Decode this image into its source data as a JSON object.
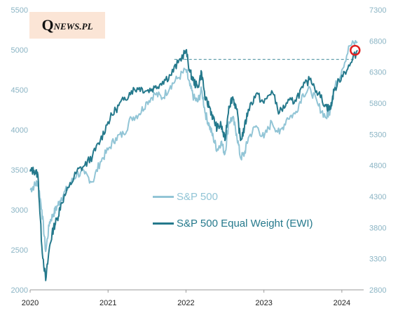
{
  "logo": {
    "initial": "Q",
    "rest": "NEWS.PL"
  },
  "chart_data": {
    "type": "line",
    "x_ticks": [
      "2020",
      "2021",
      "2022",
      "2023",
      "2024"
    ],
    "y_left": {
      "ticks": [
        "2000",
        "2500",
        "3000",
        "3500",
        "4000",
        "4500",
        "5000",
        "5500"
      ],
      "range": [
        2000,
        5500
      ]
    },
    "y_right": {
      "ticks": [
        "2800",
        "3300",
        "3800",
        "4300",
        "4800",
        "5300",
        "5800",
        "6300",
        "6800",
        "7300"
      ],
      "range": [
        2800,
        7300
      ]
    },
    "colors": {
      "sp500": "#92c5d6",
      "ewi": "#25798c",
      "highlight": "#e02020",
      "axis_text": "#8ab4c4"
    },
    "series": [
      {
        "name": "S&P 500",
        "axis": "left",
        "color": "#92c5d6",
        "x": [
          2020.0,
          2020.05,
          2020.1,
          2020.15,
          2020.2,
          2020.25,
          2020.3,
          2020.35,
          2020.4,
          2020.5,
          2020.6,
          2020.7,
          2020.8,
          2020.9,
          2021.0,
          2021.1,
          2021.2,
          2021.3,
          2021.4,
          2021.5,
          2021.6,
          2021.7,
          2021.8,
          2021.9,
          2022.0,
          2022.05,
          2022.1,
          2022.15,
          2022.2,
          2022.25,
          2022.3,
          2022.35,
          2022.4,
          2022.45,
          2022.5,
          2022.55,
          2022.6,
          2022.65,
          2022.7,
          2022.75,
          2022.8,
          2022.9,
          2023.0,
          2023.1,
          2023.2,
          2023.3,
          2023.4,
          2023.5,
          2023.6,
          2023.7,
          2023.8,
          2023.85,
          2023.9,
          2024.0,
          2024.1,
          2024.2
        ],
        "y": [
          3250,
          3300,
          3350,
          3000,
          2480,
          2850,
          2950,
          3050,
          3150,
          3300,
          3450,
          3450,
          3350,
          3600,
          3750,
          3900,
          3950,
          4150,
          4200,
          4350,
          4450,
          4400,
          4550,
          4650,
          4750,
          4550,
          4400,
          4350,
          4500,
          4200,
          4050,
          3900,
          3750,
          3850,
          3700,
          4100,
          4150,
          3950,
          3650,
          3700,
          3900,
          4050,
          3900,
          4100,
          3950,
          4150,
          4200,
          4450,
          4500,
          4300,
          4150,
          4250,
          4500,
          4750,
          5050,
          5100
        ]
      },
      {
        "name": "S&P 500 Equal Weight (EWI)",
        "axis": "right",
        "color": "#25798c",
        "x": [
          2020.0,
          2020.05,
          2020.1,
          2020.15,
          2020.2,
          2020.25,
          2020.3,
          2020.35,
          2020.4,
          2020.5,
          2020.6,
          2020.7,
          2020.8,
          2020.9,
          2021.0,
          2021.1,
          2021.2,
          2021.3,
          2021.4,
          2021.5,
          2021.6,
          2021.7,
          2021.8,
          2021.9,
          2022.0,
          2022.05,
          2022.1,
          2022.15,
          2022.2,
          2022.25,
          2022.3,
          2022.35,
          2022.4,
          2022.45,
          2022.5,
          2022.55,
          2022.6,
          2022.65,
          2022.7,
          2022.75,
          2022.8,
          2022.9,
          2023.0,
          2023.1,
          2023.2,
          2023.3,
          2023.4,
          2023.5,
          2023.6,
          2023.7,
          2023.8,
          2023.85,
          2023.9,
          2024.0,
          2024.1,
          2024.2
        ],
        "y": [
          4700,
          4720,
          4650,
          3500,
          2950,
          3500,
          3800,
          3950,
          4200,
          4450,
          4700,
          4800,
          4950,
          5200,
          5500,
          5700,
          5850,
          6000,
          6050,
          6000,
          6050,
          6150,
          6250,
          6450,
          6650,
          6300,
          6150,
          6050,
          6300,
          5850,
          5750,
          5550,
          5400,
          5450,
          5200,
          5750,
          5900,
          5700,
          5200,
          5400,
          5700,
          5950,
          5800,
          6000,
          5650,
          5800,
          5850,
          6050,
          6200,
          5950,
          5750,
          5700,
          6000,
          6250,
          6400,
          6650
        ]
      }
    ],
    "reference_line": {
      "value": 4880,
      "axis": "left",
      "style": "dashed"
    },
    "highlight_point": {
      "x": 2024.17,
      "y": 6650,
      "axis": "right"
    },
    "grid": false,
    "legend_placement": "center"
  }
}
